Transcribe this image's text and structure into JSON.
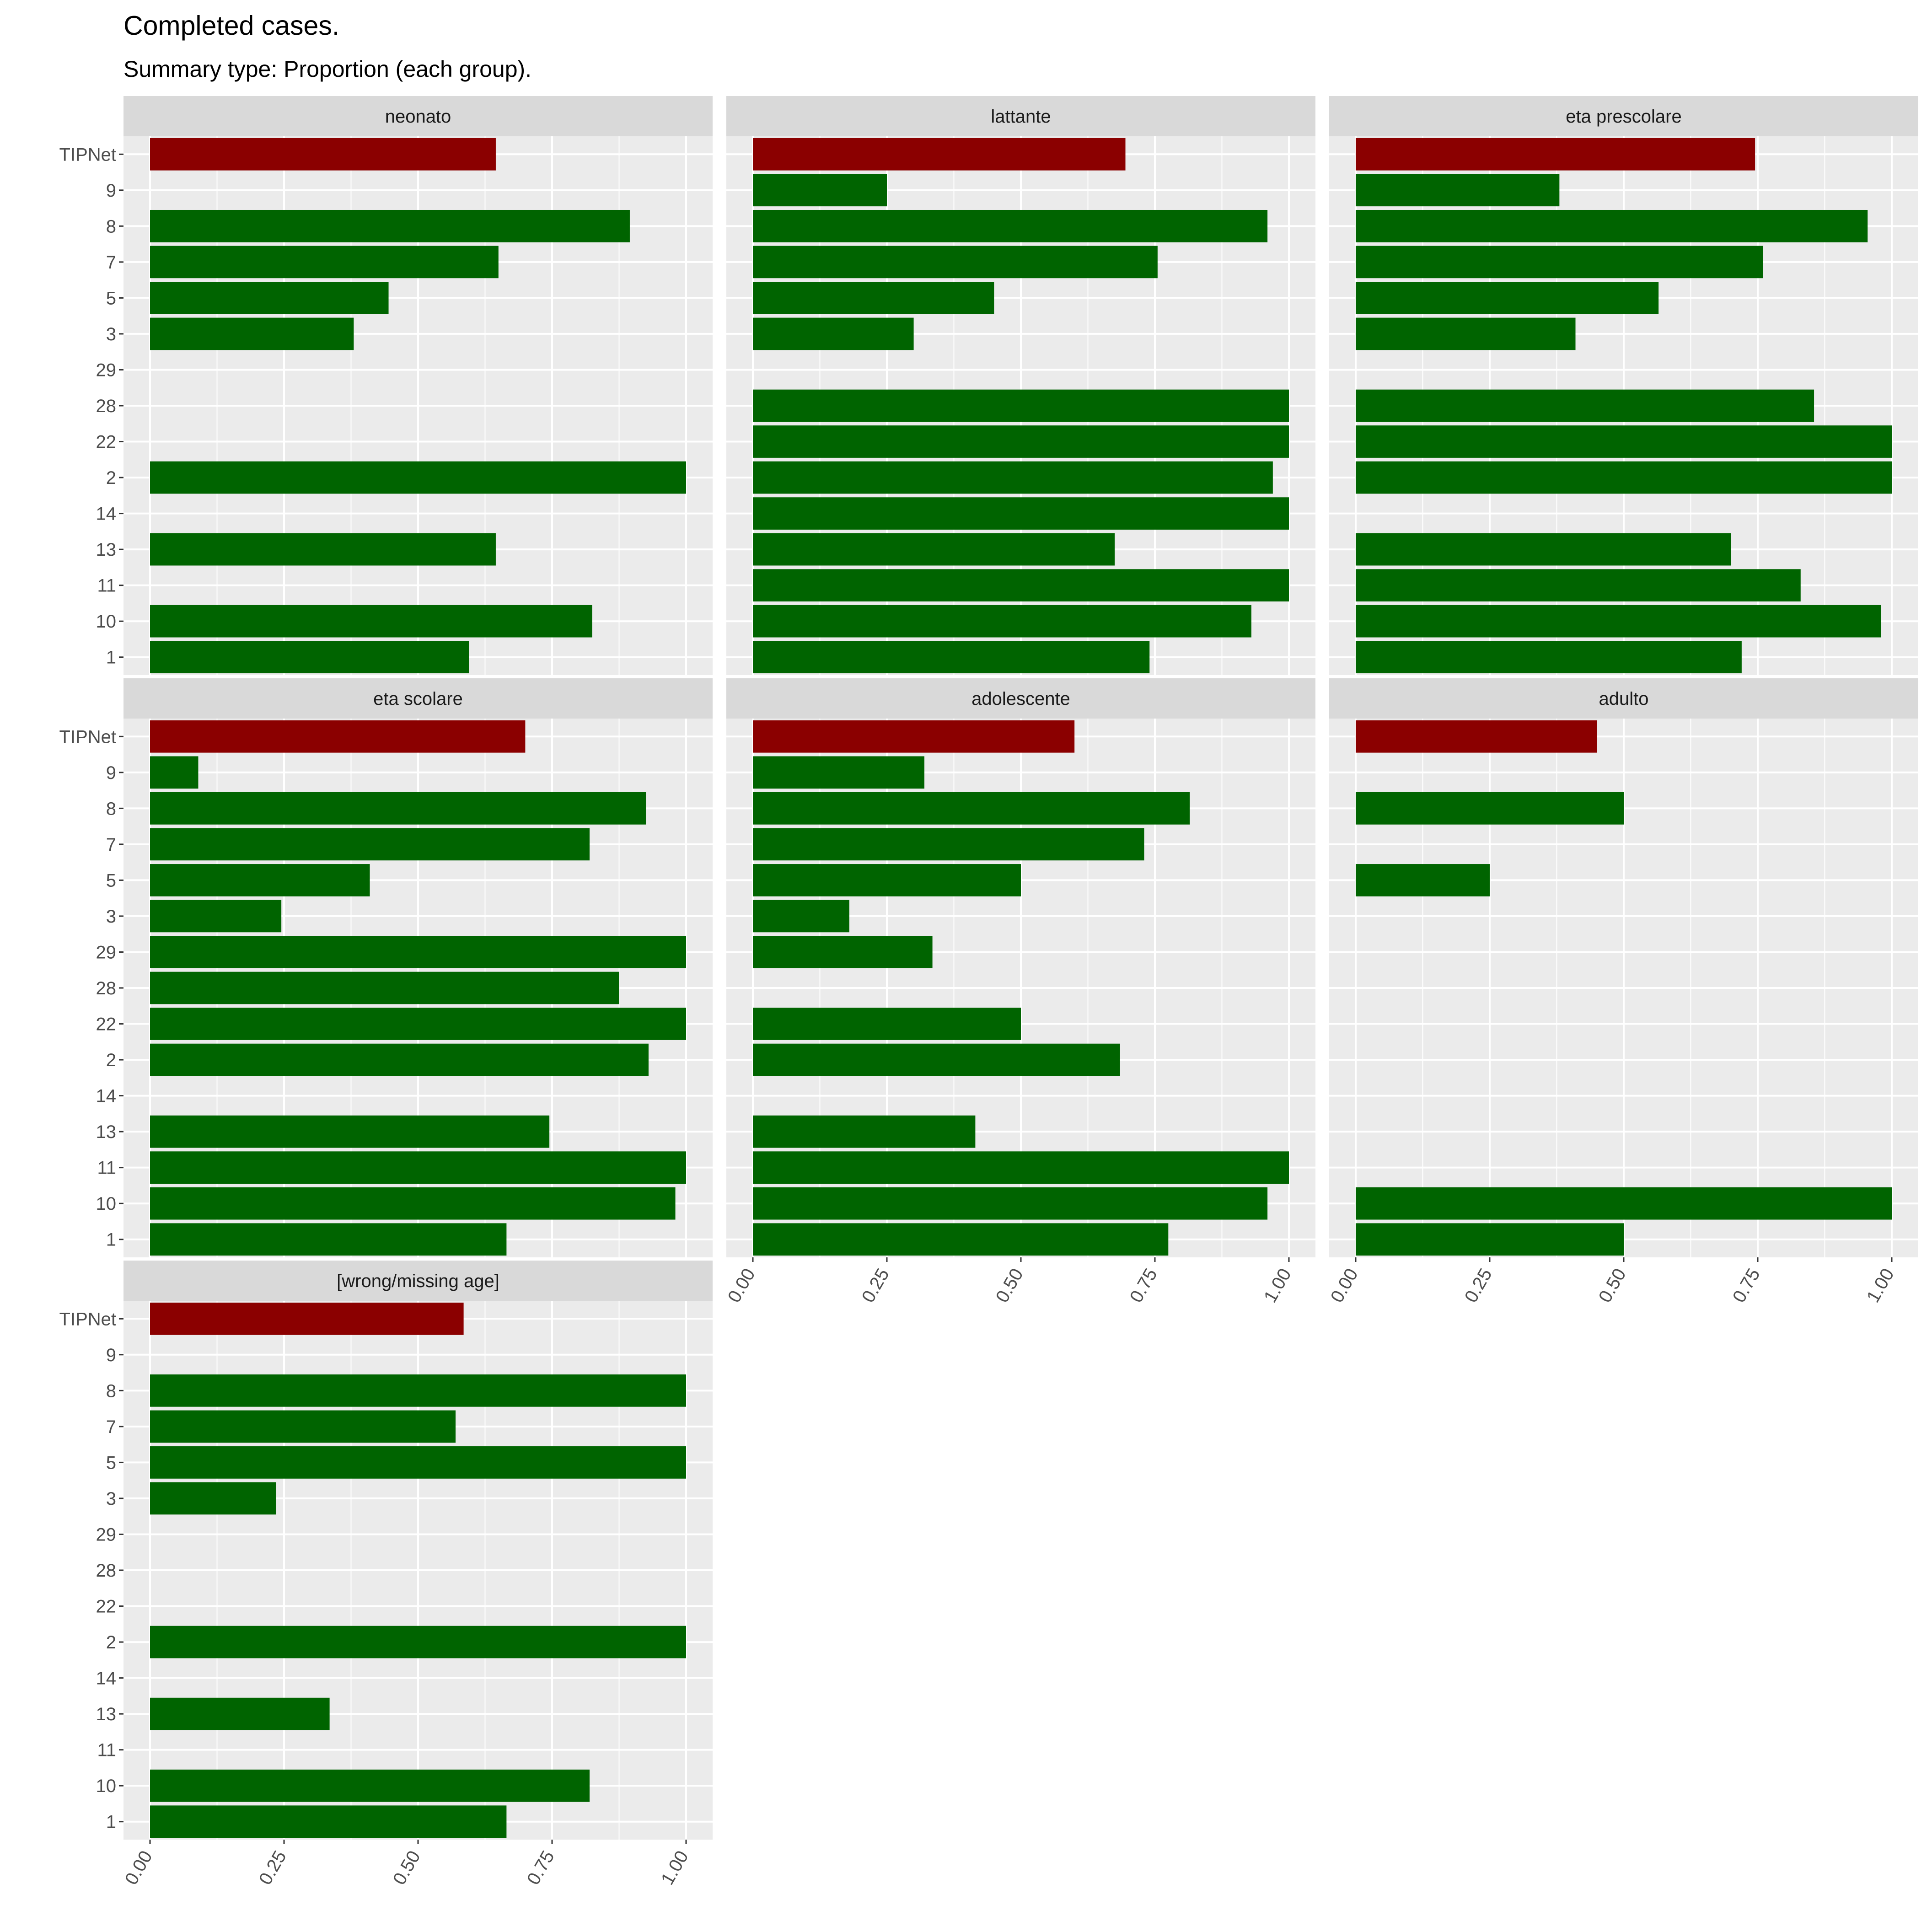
{
  "title": "Completed cases.",
  "subtitle": "Summary type: Proportion (each group).",
  "chart_data": {
    "type": "bar",
    "orientation": "horizontal",
    "facet_layout": "wrap, 3 columns",
    "categories": [
      "TIPNet",
      "9",
      "8",
      "7",
      "5",
      "3",
      "29",
      "28",
      "22",
      "2",
      "14",
      "13",
      "11",
      "10",
      "1"
    ],
    "xlim": [
      0,
      1
    ],
    "x_ticks": [
      "0.00",
      "0.25",
      "0.50",
      "0.75",
      "1.00"
    ],
    "colors": {
      "TIPNet": "#8B0000",
      "center": "#006400",
      "panel_bg": "#EBEBEB",
      "strip_bg": "#D9D9D9",
      "grid": "#FFFFFF"
    },
    "panels": [
      {
        "name": "neonato",
        "values": [
          0.645,
          null,
          0.895,
          0.65,
          0.445,
          0.38,
          null,
          null,
          null,
          1.0,
          null,
          0.645,
          null,
          0.825,
          0.595
        ]
      },
      {
        "name": "lattante",
        "values": [
          0.695,
          0.25,
          0.96,
          0.755,
          0.45,
          0.3,
          null,
          1.0,
          1.0,
          0.97,
          1.0,
          0.675,
          1.0,
          0.93,
          0.74
        ]
      },
      {
        "name": "eta prescolare",
        "values": [
          0.745,
          0.38,
          0.955,
          0.76,
          0.565,
          0.41,
          null,
          0.855,
          1.0,
          1.0,
          null,
          0.7,
          0.83,
          0.98,
          0.72
        ]
      },
      {
        "name": "eta scolare",
        "values": [
          0.7,
          0.09,
          0.925,
          0.82,
          0.41,
          0.245,
          1.0,
          0.875,
          1.0,
          0.93,
          null,
          0.745,
          1.0,
          0.98,
          0.665
        ]
      },
      {
        "name": "adolescente",
        "values": [
          0.6,
          0.32,
          0.815,
          0.73,
          0.5,
          0.18,
          0.335,
          null,
          0.5,
          0.685,
          null,
          0.415,
          1.0,
          0.96,
          0.775
        ]
      },
      {
        "name": "adulto",
        "values": [
          0.45,
          null,
          0.5,
          null,
          0.25,
          null,
          null,
          null,
          null,
          null,
          null,
          null,
          null,
          1.0,
          0.5
        ]
      },
      {
        "name": "[wrong/missing age]",
        "values": [
          0.585,
          null,
          1.0,
          0.57,
          1.0,
          0.235,
          null,
          null,
          null,
          1.0,
          null,
          0.335,
          null,
          0.82,
          0.665
        ]
      }
    ]
  }
}
